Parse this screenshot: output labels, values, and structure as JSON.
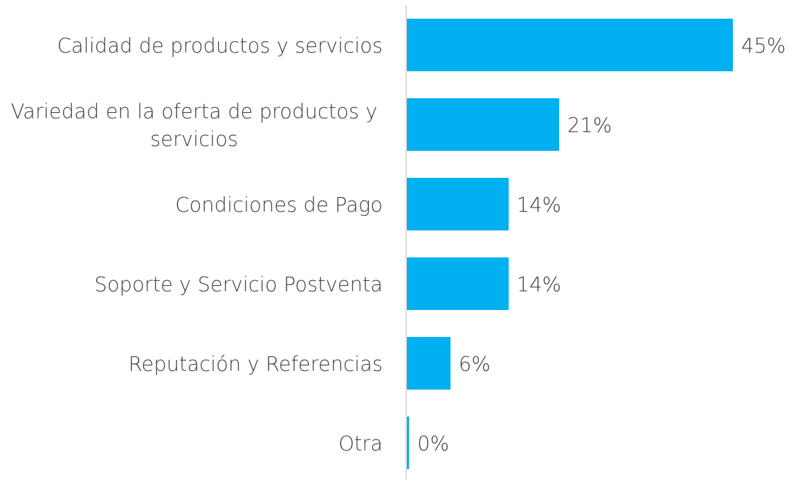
{
  "chart_data": {
    "type": "bar",
    "orientation": "horizontal",
    "categories": [
      "Calidad de productos y servicios",
      "Variedad en la oferta de productos y servicios",
      "Condiciones de Pago",
      "Soporte y Servicio Postventa",
      "Reputación y Referencias",
      "Otra"
    ],
    "values": [
      45,
      21,
      14,
      14,
      6,
      0
    ],
    "value_labels": [
      "45%",
      "21%",
      "14%",
      "14%",
      "6%",
      "0%"
    ],
    "color": "#00b0f0"
  }
}
